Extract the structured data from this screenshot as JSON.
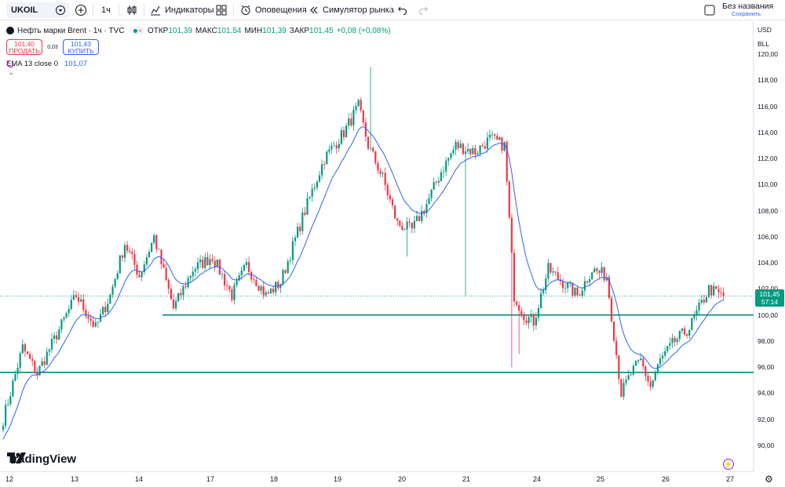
{
  "toolbar": {
    "symbol": "UKOIL",
    "interval": "1ч",
    "indicators": "Индикаторы",
    "alerts": "Оповещения",
    "replay": "Симулятор рынка",
    "layout_name": "Без названия",
    "save": "Сохранить"
  },
  "legend": {
    "title": "Нефть марки Brent · 1ч · TVC",
    "open_label": "ОТКР",
    "open": "101,39",
    "high_label": "МАКС",
    "high": "101,54",
    "low_label": "МИН",
    "low": "101,39",
    "close_label": "ЗАКР",
    "close": "101,45",
    "change": "+0,08 (+0,08%)",
    "sell_price": "101,40",
    "sell_label": "ПРОДАТЬ",
    "spread": "0,03",
    "buy_price": "101,43",
    "buy_label": "КУПИТЬ",
    "ema_label": "EMA 13 close 0",
    "ema_value": "101,07"
  },
  "axis": {
    "currency": "USD",
    "unit": "BLL",
    "price_labels": [
      "120,00",
      "118,00",
      "116,00",
      "114,00",
      "112,00",
      "110,00",
      "108,00",
      "106,00",
      "104,00",
      "102,00",
      "100,00",
      "98,00",
      "96,00",
      "94,00",
      "92,00",
      "90,00"
    ],
    "current_price": "101,45",
    "countdown": "57:14",
    "time_labels": [
      "12",
      "13",
      "14",
      "17",
      "18",
      "19",
      "20",
      "21",
      "24",
      "25",
      "26",
      "27"
    ]
  },
  "brand": "TradingView",
  "colors": {
    "up": "#089981",
    "down": "#f23645",
    "ema": "#2962ff",
    "level": "#00897b"
  },
  "chart_data": {
    "type": "candlestick",
    "title": "Нефть марки Brent · 1ч · TVC",
    "ylim": [
      89,
      121.5
    ],
    "xlabels": [
      "12",
      "13",
      "14",
      "17",
      "18",
      "19",
      "20",
      "21",
      "24",
      "25",
      "26",
      "27"
    ],
    "horizontal_levels": [
      100,
      95.6
    ],
    "anchors": [
      [
        0,
        92
      ],
      [
        8,
        97.5
      ],
      [
        14,
        95.5
      ],
      [
        22,
        98.5
      ],
      [
        30,
        101.5
      ],
      [
        38,
        99
      ],
      [
        44,
        101.5
      ],
      [
        50,
        105.5
      ],
      [
        56,
        103
      ],
      [
        62,
        106
      ],
      [
        70,
        100.5
      ],
      [
        78,
        103.5
      ],
      [
        86,
        104.5
      ],
      [
        94,
        101.5
      ],
      [
        100,
        103.8
      ],
      [
        108,
        101.5
      ],
      [
        114,
        102.5
      ],
      [
        124,
        108
      ],
      [
        132,
        112
      ],
      [
        140,
        114
      ],
      [
        146,
        116
      ],
      [
        150,
        113
      ],
      [
        156,
        110.5
      ],
      [
        162,
        107
      ],
      [
        168,
        106.5
      ],
      [
        174,
        108.5
      ],
      [
        180,
        111
      ],
      [
        186,
        113
      ],
      [
        194,
        112.5
      ],
      [
        200,
        113.5
      ],
      [
        206,
        113
      ],
      [
        210,
        101.5
      ],
      [
        214,
        100
      ],
      [
        218,
        99.5
      ],
      [
        224,
        103.5
      ],
      [
        230,
        102.5
      ],
      [
        236,
        101.5
      ],
      [
        242,
        103.5
      ],
      [
        248,
        103
      ],
      [
        254,
        94
      ],
      [
        258,
        95.5
      ],
      [
        262,
        96.5
      ],
      [
        266,
        94.5
      ],
      [
        270,
        96.5
      ],
      [
        276,
        98
      ],
      [
        282,
        99
      ],
      [
        290,
        102
      ],
      [
        296,
        101.4
      ]
    ],
    "ema_period": 13,
    "last_close": 101.45
  }
}
